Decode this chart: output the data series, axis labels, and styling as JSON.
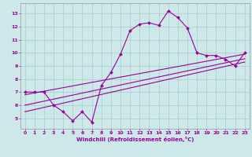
{
  "x": [
    0,
    1,
    2,
    3,
    4,
    5,
    6,
    7,
    8,
    9,
    10,
    11,
    12,
    13,
    14,
    15,
    16,
    17,
    18,
    19,
    20,
    21,
    22,
    23
  ],
  "main_line": [
    7.0,
    7.0,
    7.0,
    6.0,
    5.5,
    4.8,
    5.5,
    4.7,
    7.5,
    8.5,
    9.9,
    11.7,
    12.2,
    12.3,
    12.1,
    13.2,
    12.7,
    11.9,
    10.0,
    9.8,
    9.8,
    9.5,
    9.0,
    10.0
  ],
  "reg_lines": [
    [
      5.5,
      9.3
    ],
    [
      6.0,
      9.55
    ],
    [
      6.8,
      9.9
    ]
  ],
  "bg_color": "#cce8e8",
  "line_color": "#990099",
  "grid_color": "#aacccc",
  "text_color": "#990099",
  "xlabel": "Windchill (Refroidissement éolien,°C)",
  "ylim": [
    4.2,
    13.8
  ],
  "xlim": [
    -0.5,
    23.5
  ],
  "yticks": [
    5,
    6,
    7,
    8,
    9,
    10,
    11,
    12,
    13
  ],
  "xticks": [
    0,
    1,
    2,
    3,
    4,
    5,
    6,
    7,
    8,
    9,
    10,
    11,
    12,
    13,
    14,
    15,
    16,
    17,
    18,
    19,
    20,
    21,
    22,
    23
  ]
}
